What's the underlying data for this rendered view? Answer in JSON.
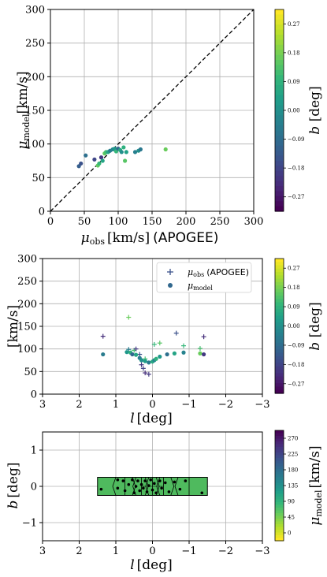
{
  "chart_data": [
    {
      "type": "scatter",
      "title": "",
      "xlabel_math": "μ",
      "xlabel_sub": "obs",
      "xlabel_unit": "[km/s]",
      "xlabel_suffix": "(APOGEE)",
      "ylabel_math": "μ",
      "ylabel_sub": "model",
      "ylabel_unit": "[km/s]",
      "xlim": [
        0,
        300
      ],
      "ylim": [
        0,
        300
      ],
      "xticks": [
        "0",
        "50",
        "100",
        "150",
        "200",
        "250",
        "300"
      ],
      "yticks": [
        "0",
        "50",
        "100",
        "150",
        "200",
        "250",
        "300"
      ],
      "grid": true,
      "reference_line": "y = x (dashed)",
      "points": [
        {
          "x": 42,
          "y": 67,
          "b": -0.12
        },
        {
          "x": 45,
          "y": 71,
          "b": -0.15
        },
        {
          "x": 52,
          "y": 83,
          "b": -0.08
        },
        {
          "x": 65,
          "y": 77,
          "b": -0.17
        },
        {
          "x": 70,
          "y": 68,
          "b": 0.15
        },
        {
          "x": 72,
          "y": 71,
          "b": 0.1
        },
        {
          "x": 75,
          "y": 80,
          "b": -0.2
        },
        {
          "x": 77,
          "y": 75,
          "b": 0.05
        },
        {
          "x": 80,
          "y": 86,
          "b": 0.15
        },
        {
          "x": 82,
          "y": 88,
          "b": 0.12
        },
        {
          "x": 85,
          "y": 88,
          "b": 0.05
        },
        {
          "x": 88,
          "y": 90,
          "b": -0.05
        },
        {
          "x": 92,
          "y": 92,
          "b": -0.02
        },
        {
          "x": 95,
          "y": 93,
          "b": 0.02
        },
        {
          "x": 97,
          "y": 89,
          "b": 0.1
        },
        {
          "x": 100,
          "y": 93,
          "b": -0.1
        },
        {
          "x": 103,
          "y": 91,
          "b": 0.06
        },
        {
          "x": 105,
          "y": 88,
          "b": 0.0
        },
        {
          "x": 108,
          "y": 95,
          "b": 0.08
        },
        {
          "x": 110,
          "y": 75,
          "b": 0.14
        },
        {
          "x": 112,
          "y": 88,
          "b": 0.04
        },
        {
          "x": 125,
          "y": 88,
          "b": -0.04
        },
        {
          "x": 130,
          "y": 90,
          "b": 0.0
        },
        {
          "x": 133,
          "y": 92,
          "b": -0.06
        },
        {
          "x": 170,
          "y": 92,
          "b": 0.16
        }
      ],
      "colorbar": {
        "label": "b [deg]",
        "range": [
          -0.3,
          0.3
        ],
        "ticks": [
          "0.27",
          "0.18",
          "0.09",
          "0.00",
          "−0.09",
          "−0.18",
          "−0.27"
        ],
        "colormap": "viridis"
      }
    },
    {
      "type": "scatter",
      "title": "",
      "xlabel_math": "l",
      "xlabel_unit": "[deg]",
      "ylabel_unit": "[km/s]",
      "xlim": [
        3,
        -3
      ],
      "ylim": [
        0,
        300
      ],
      "xticks": [
        "3",
        "2",
        "1",
        "0",
        "−1",
        "−2",
        "−3"
      ],
      "yticks": [
        "0",
        "50",
        "100",
        "150",
        "200",
        "250",
        "300"
      ],
      "grid": true,
      "legend_placement": "top-right",
      "legend": [
        {
          "marker": "plus",
          "label_math": "μ",
          "label_sub": "obs",
          "label_suffix": "(APOGEE)"
        },
        {
          "marker": "circle",
          "label_math": "μ",
          "label_sub": "model"
        }
      ],
      "series": [
        {
          "marker": "plus",
          "points": [
            {
              "l": 1.35,
              "v": 128,
              "b": -0.22
            },
            {
              "l": 0.65,
              "v": 170,
              "b": 0.16
            },
            {
              "l": 0.65,
              "v": 99,
              "b": -0.05
            },
            {
              "l": 0.5,
              "v": 97,
              "b": 0.12
            },
            {
              "l": 0.45,
              "v": 100,
              "b": -0.2
            },
            {
              "l": 0.35,
              "v": 88,
              "b": -0.15
            },
            {
              "l": 0.3,
              "v": 65,
              "b": -0.2
            },
            {
              "l": 0.25,
              "v": 57,
              "b": -0.18
            },
            {
              "l": 0.2,
              "v": 47,
              "b": -0.22
            },
            {
              "l": 0.1,
              "v": 44,
              "b": -0.2
            },
            {
              "l": 0.2,
              "v": 78,
              "b": 0.12
            },
            {
              "l": -0.05,
              "v": 110,
              "b": 0.1
            },
            {
              "l": -0.2,
              "v": 113,
              "b": 0.14
            },
            {
              "l": -0.65,
              "v": 135,
              "b": -0.15
            },
            {
              "l": -0.85,
              "v": 107,
              "b": 0.1
            },
            {
              "l": -1.3,
              "v": 101,
              "b": 0.12
            },
            {
              "l": -1.4,
              "v": 127,
              "b": -0.22
            }
          ]
        },
        {
          "marker": "circle",
          "points": [
            {
              "l": 1.35,
              "v": 88,
              "b": -0.05
            },
            {
              "l": 0.7,
              "v": 93,
              "b": 0.02
            },
            {
              "l": 0.6,
              "v": 92,
              "b": 0.08
            },
            {
              "l": 0.55,
              "v": 88,
              "b": -0.1
            },
            {
              "l": 0.45,
              "v": 87,
              "b": 0.05
            },
            {
              "l": 0.35,
              "v": 80,
              "b": -0.05
            },
            {
              "l": 0.3,
              "v": 75,
              "b": 0.0
            },
            {
              "l": 0.2,
              "v": 73,
              "b": 0.03
            },
            {
              "l": 0.1,
              "v": 70,
              "b": -0.05
            },
            {
              "l": 0.0,
              "v": 72,
              "b": 0.06
            },
            {
              "l": -0.05,
              "v": 75,
              "b": -0.02
            },
            {
              "l": -0.1,
              "v": 78,
              "b": 0.08
            },
            {
              "l": -0.2,
              "v": 83,
              "b": 0.02
            },
            {
              "l": -0.4,
              "v": 88,
              "b": -0.08
            },
            {
              "l": -0.6,
              "v": 90,
              "b": 0.05
            },
            {
              "l": -0.85,
              "v": 92,
              "b": -0.03
            },
            {
              "l": -1.3,
              "v": 90,
              "b": 0.16
            },
            {
              "l": -1.4,
              "v": 88,
              "b": -0.2
            }
          ]
        }
      ],
      "colorbar": {
        "label": "b [deg]",
        "range": [
          -0.3,
          0.3
        ],
        "ticks": [
          "0.27",
          "0.18",
          "0.09",
          "0.00",
          "−0.09",
          "−0.18",
          "−0.27"
        ],
        "colormap": "viridis"
      }
    },
    {
      "type": "scatter",
      "title": "",
      "xlabel_math": "l",
      "xlabel_unit": "[deg]",
      "ylabel_math": "b",
      "ylabel_unit": "[deg]",
      "xlim": [
        3,
        -3
      ],
      "ylim": [
        -1.5,
        1.5
      ],
      "xticks": [
        "3",
        "2",
        "1",
        "0",
        "−1",
        "−2",
        "−3"
      ],
      "yticks": [
        "1",
        "0",
        "−1"
      ],
      "grid": true,
      "region": {
        "l": [
          -1.5,
          1.5
        ],
        "b": [
          -0.25,
          0.25
        ],
        "fill_color": "#4fba5e"
      },
      "cell_boundaries_l": [
        1.0,
        0.75,
        0.55,
        0.45,
        0.3,
        0.2,
        0.1,
        0.0,
        -0.1,
        -0.2,
        -0.3,
        -0.5,
        -0.7,
        -1.0
      ],
      "points": [
        {
          "l": 1.4,
          "b": -0.08
        },
        {
          "l": 0.95,
          "b": 0.18
        },
        {
          "l": 0.95,
          "b": -0.05
        },
        {
          "l": 0.8,
          "b": 0.15
        },
        {
          "l": 0.75,
          "b": -0.12
        },
        {
          "l": 0.65,
          "b": 0.05
        },
        {
          "l": 0.55,
          "b": 0.18
        },
        {
          "l": 0.5,
          "b": -0.18
        },
        {
          "l": 0.45,
          "b": 0.0
        },
        {
          "l": 0.4,
          "b": 0.15
        },
        {
          "l": 0.35,
          "b": -0.12
        },
        {
          "l": 0.3,
          "b": 0.05
        },
        {
          "l": 0.25,
          "b": -0.05
        },
        {
          "l": 0.2,
          "b": 0.15
        },
        {
          "l": 0.15,
          "b": -0.15
        },
        {
          "l": 0.1,
          "b": 0.02
        },
        {
          "l": 0.05,
          "b": 0.18
        },
        {
          "l": 0.0,
          "b": -0.1
        },
        {
          "l": -0.05,
          "b": 0.08
        },
        {
          "l": -0.1,
          "b": -0.18
        },
        {
          "l": -0.2,
          "b": 0.15
        },
        {
          "l": -0.25,
          "b": -0.05
        },
        {
          "l": -0.35,
          "b": 0.1
        },
        {
          "l": -0.45,
          "b": -0.15
        },
        {
          "l": -0.6,
          "b": 0.12
        },
        {
          "l": -0.75,
          "b": -0.08
        },
        {
          "l": -0.9,
          "b": 0.15
        },
        {
          "l": -1.35,
          "b": -0.18
        }
      ],
      "colorbar": {
        "label_math": "μ",
        "label_sub": "model",
        "label_unit": "[km/s]",
        "range": [
          0,
          300
        ],
        "ticks": [
          "270",
          "225",
          "180",
          "135",
          "90",
          "45",
          "0"
        ],
        "colormap": "viridis_r"
      }
    }
  ]
}
